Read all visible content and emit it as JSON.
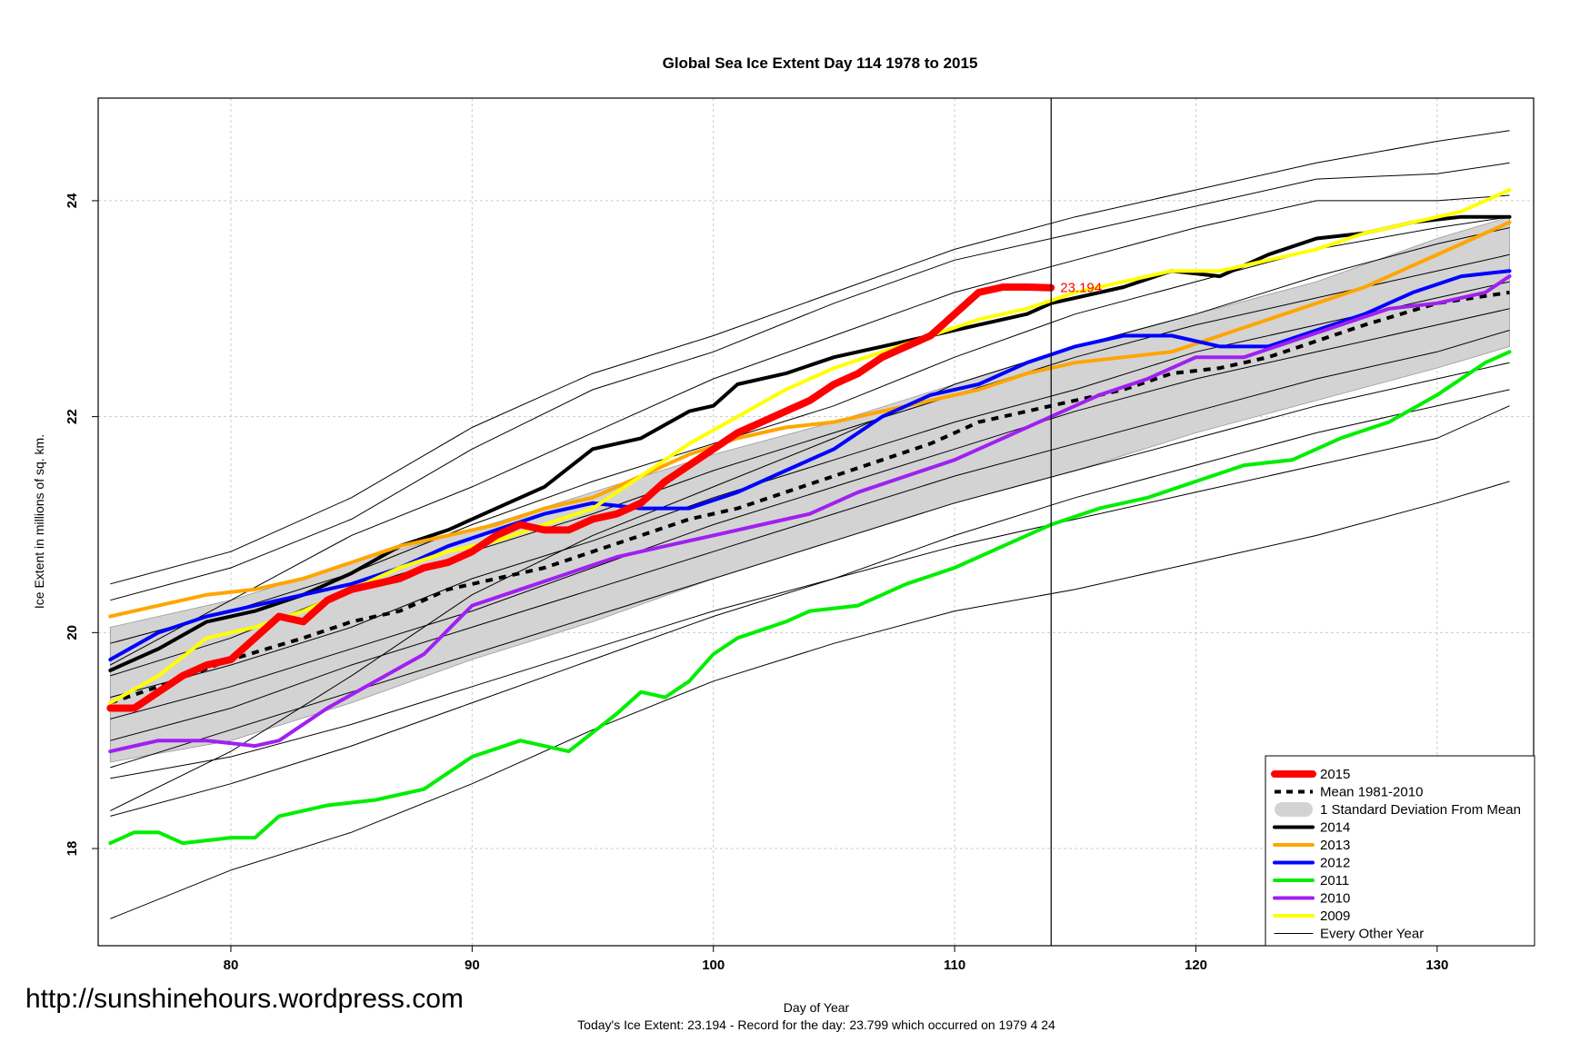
{
  "chart_data": {
    "type": "line",
    "title": "Global Sea Ice Extent Day 114 1978 to 2015",
    "xlabel": "Day of Year",
    "ylabel": "Ice Extent in millions of sq. km.",
    "xlim": [
      74.5,
      134
    ],
    "ylim": [
      17.1,
      24.95
    ],
    "x_ticks": [
      "80",
      "90",
      "100",
      "110",
      "120",
      "130"
    ],
    "y_ticks": [
      "18",
      "20",
      "22",
      "24"
    ],
    "grid": true,
    "marker_day": 114,
    "end_label": {
      "text": "23.194",
      "x": 114,
      "y": 23.194,
      "color": "#ff0000"
    },
    "footer": "Today's Ice Extent: 23.194  - Record for the day: 23.799 which occurred on 1979 4 24",
    "watermark": "http://sunshinehours.wordpress.com",
    "legend_position": "bottom-right",
    "legend": [
      {
        "label": "2015",
        "color": "#ff0000",
        "style": "thick"
      },
      {
        "label": "Mean 1981-2010",
        "color": "#000000",
        "style": "dashed"
      },
      {
        "label": "1 Standard Deviation From Mean",
        "color": "#d3d3d3",
        "style": "band"
      },
      {
        "label": "2014",
        "color": "#000000",
        "style": "line"
      },
      {
        "label": "2013",
        "color": "#ffa500",
        "style": "line"
      },
      {
        "label": "2012",
        "color": "#0000ff",
        "style": "line"
      },
      {
        "label": "2011",
        "color": "#00ee00",
        "style": "line"
      },
      {
        "label": "2010",
        "color": "#a020f0",
        "style": "line"
      },
      {
        "label": "2009",
        "color": "#ffff00",
        "style": "line"
      },
      {
        "label": "Every Other Year",
        "color": "#000000",
        "style": "thin"
      }
    ],
    "std_band": {
      "x": [
        75,
        80,
        85,
        90,
        95,
        100,
        105,
        110,
        115,
        120,
        125,
        130,
        133
      ],
      "upper": [
        20.05,
        20.3,
        20.65,
        20.95,
        21.3,
        21.65,
        21.95,
        22.3,
        22.65,
        22.95,
        23.25,
        23.65,
        23.85
      ],
      "lower": [
        18.8,
        19.0,
        19.35,
        19.75,
        20.1,
        20.5,
        20.85,
        21.2,
        21.5,
        21.85,
        22.15,
        22.45,
        22.65
      ]
    },
    "series": [
      {
        "name": "Mean 1981-2010",
        "color": "#000000",
        "style": "dashed",
        "x": [
          75,
          77,
          80,
          83,
          85,
          87,
          89,
          91,
          93,
          95,
          97,
          99,
          101,
          103,
          105,
          107,
          109,
          111,
          113,
          115,
          117,
          119,
          121,
          123,
          125,
          127,
          130,
          133
        ],
        "y": [
          19.35,
          19.5,
          19.75,
          19.95,
          20.1,
          20.2,
          20.4,
          20.5,
          20.6,
          20.75,
          20.9,
          21.05,
          21.15,
          21.3,
          21.45,
          21.6,
          21.75,
          21.95,
          22.05,
          22.15,
          22.25,
          22.4,
          22.45,
          22.55,
          22.7,
          22.85,
          23.05,
          23.15
        ]
      },
      {
        "name": "2014",
        "color": "#000000",
        "style": "line",
        "x": [
          75,
          77,
          79,
          81,
          83,
          85,
          87,
          89,
          91,
          93,
          95,
          97,
          99,
          100,
          101,
          103,
          105,
          107,
          109,
          111,
          113,
          114,
          115,
          117,
          119,
          121,
          123,
          125,
          127,
          129,
          131,
          133
        ],
        "y": [
          19.65,
          19.85,
          20.1,
          20.2,
          20.35,
          20.55,
          20.8,
          20.95,
          21.15,
          21.35,
          21.7,
          21.8,
          22.05,
          22.1,
          22.3,
          22.4,
          22.55,
          22.65,
          22.75,
          22.85,
          22.95,
          23.05,
          23.1,
          23.2,
          23.35,
          23.3,
          23.5,
          23.65,
          23.7,
          23.8,
          23.85,
          23.85
        ]
      },
      {
        "name": "2013",
        "color": "#ffa500",
        "style": "line",
        "x": [
          75,
          77,
          79,
          81,
          83,
          85,
          87,
          89,
          91,
          93,
          95,
          97,
          99,
          101,
          103,
          105,
          107,
          109,
          111,
          113,
          115,
          117,
          119,
          121,
          123,
          125,
          127,
          129,
          131,
          133
        ],
        "y": [
          20.15,
          20.25,
          20.35,
          20.4,
          20.5,
          20.65,
          20.8,
          20.9,
          21.0,
          21.15,
          21.25,
          21.45,
          21.65,
          21.8,
          21.9,
          21.95,
          22.05,
          22.15,
          22.25,
          22.4,
          22.5,
          22.55,
          22.6,
          22.75,
          22.9,
          23.05,
          23.2,
          23.4,
          23.6,
          23.8
        ]
      },
      {
        "name": "2012",
        "color": "#0000ff",
        "style": "line",
        "x": [
          75,
          77,
          79,
          81,
          83,
          85,
          87,
          89,
          91,
          93,
          95,
          97,
          99,
          101,
          103,
          105,
          107,
          109,
          111,
          113,
          115,
          117,
          119,
          121,
          123,
          125,
          127,
          129,
          131,
          133
        ],
        "y": [
          19.75,
          20.0,
          20.15,
          20.25,
          20.35,
          20.45,
          20.6,
          20.8,
          20.95,
          21.1,
          21.2,
          21.15,
          21.15,
          21.3,
          21.5,
          21.7,
          22.0,
          22.2,
          22.3,
          22.5,
          22.65,
          22.75,
          22.75,
          22.65,
          22.65,
          22.8,
          22.95,
          23.15,
          23.3,
          23.35
        ]
      },
      {
        "name": "2011",
        "color": "#00ee00",
        "style": "line",
        "x": [
          75,
          76,
          77,
          78,
          80,
          81,
          82,
          84,
          86,
          88,
          89,
          90,
          92,
          94,
          96,
          97,
          98,
          99,
          100,
          101,
          103,
          104,
          106,
          108,
          110,
          112,
          114,
          116,
          118,
          120,
          122,
          124,
          126,
          128,
          130,
          132,
          133
        ],
        "y": [
          18.05,
          18.15,
          18.15,
          18.05,
          18.1,
          18.1,
          18.3,
          18.4,
          18.45,
          18.55,
          18.7,
          18.85,
          19.0,
          18.9,
          19.25,
          19.45,
          19.4,
          19.55,
          19.8,
          19.95,
          20.1,
          20.2,
          20.25,
          20.45,
          20.6,
          20.8,
          21.0,
          21.15,
          21.25,
          21.4,
          21.55,
          21.6,
          21.8,
          21.95,
          22.2,
          22.5,
          22.6
        ]
      },
      {
        "name": "2010",
        "color": "#a020f0",
        "style": "line",
        "x": [
          75,
          77,
          79,
          81,
          82,
          84,
          86,
          88,
          90,
          92,
          94,
          96,
          98,
          100,
          102,
          104,
          106,
          108,
          110,
          112,
          114,
          116,
          118,
          120,
          122,
          124,
          126,
          128,
          130,
          132,
          133
        ],
        "y": [
          18.9,
          19.0,
          19.0,
          18.95,
          19.0,
          19.3,
          19.55,
          19.8,
          20.25,
          20.4,
          20.55,
          20.7,
          20.8,
          20.9,
          21.0,
          21.1,
          21.3,
          21.45,
          21.6,
          21.8,
          22.0,
          22.2,
          22.35,
          22.55,
          22.55,
          22.7,
          22.85,
          23.0,
          23.05,
          23.15,
          23.3
        ]
      },
      {
        "name": "2009",
        "color": "#ffff00",
        "style": "line",
        "x": [
          75,
          77,
          79,
          81,
          83,
          85,
          87,
          89,
          91,
          93,
          95,
          97,
          99,
          101,
          103,
          105,
          107,
          109,
          111,
          113,
          115,
          117,
          119,
          121,
          123,
          125,
          127,
          129,
          131,
          133
        ],
        "y": [
          19.35,
          19.6,
          19.95,
          20.05,
          20.2,
          20.4,
          20.6,
          20.75,
          20.85,
          21.0,
          21.15,
          21.45,
          21.75,
          22.0,
          22.25,
          22.45,
          22.6,
          22.75,
          22.9,
          23.0,
          23.15,
          23.25,
          23.35,
          23.35,
          23.45,
          23.55,
          23.7,
          23.8,
          23.9,
          24.1
        ]
      },
      {
        "name": "2015",
        "color": "#ff0000",
        "style": "thick",
        "x": [
          75,
          76,
          77,
          78,
          79,
          80,
          81,
          82,
          83,
          84,
          85,
          86,
          87,
          88,
          89,
          90,
          91,
          92,
          93,
          94,
          95,
          96,
          97,
          98,
          99,
          100,
          101,
          102,
          103,
          104,
          105,
          106,
          107,
          108,
          109,
          110,
          111,
          112,
          113,
          114
        ],
        "y": [
          19.3,
          19.3,
          19.45,
          19.6,
          19.7,
          19.75,
          19.95,
          20.15,
          20.1,
          20.3,
          20.4,
          20.45,
          20.5,
          20.6,
          20.65,
          20.75,
          20.9,
          21.0,
          20.95,
          20.95,
          21.05,
          21.1,
          21.2,
          21.4,
          21.55,
          21.7,
          21.85,
          21.95,
          22.05,
          22.15,
          22.3,
          22.4,
          22.55,
          22.65,
          22.75,
          22.95,
          23.15,
          23.2,
          23.2,
          23.194
        ]
      }
    ],
    "other_years": [
      {
        "x": [
          75,
          80,
          85,
          90,
          95,
          100,
          105,
          110,
          115,
          120,
          125,
          130,
          133
        ],
        "y": [
          20.45,
          20.75,
          21.25,
          21.9,
          22.4,
          22.75,
          23.15,
          23.55,
          23.85,
          24.1,
          24.35,
          24.55,
          24.65
        ]
      },
      {
        "x": [
          75,
          80,
          85,
          90,
          95,
          100,
          105,
          110,
          115,
          120,
          125,
          130,
          133
        ],
        "y": [
          20.3,
          20.6,
          21.05,
          21.7,
          22.25,
          22.6,
          23.05,
          23.45,
          23.7,
          23.95,
          24.2,
          24.25,
          24.35
        ]
      },
      {
        "x": [
          75,
          80,
          85,
          90,
          95,
          100,
          105,
          110,
          115,
          120,
          125,
          130,
          133
        ],
        "y": [
          19.7,
          20.3,
          20.9,
          21.35,
          21.85,
          22.35,
          22.75,
          23.15,
          23.45,
          23.75,
          24.0,
          24.0,
          24.05
        ]
      },
      {
        "x": [
          75,
          80,
          85,
          90,
          95,
          100,
          105,
          110,
          115,
          120,
          125,
          130,
          133
        ],
        "y": [
          19.9,
          20.2,
          20.55,
          21.0,
          21.4,
          21.75,
          22.1,
          22.55,
          22.95,
          23.25,
          23.55,
          23.75,
          23.85
        ]
      },
      {
        "x": [
          75,
          80,
          85,
          90,
          95,
          100,
          105,
          110,
          115,
          120,
          125,
          130,
          133
        ],
        "y": [
          19.6,
          19.95,
          20.4,
          20.75,
          21.1,
          21.5,
          21.85,
          22.2,
          22.55,
          22.85,
          23.1,
          23.35,
          23.5
        ]
      },
      {
        "x": [
          75,
          80,
          85,
          90,
          95,
          100,
          105,
          110,
          115,
          120,
          125,
          130,
          133
        ],
        "y": [
          19.4,
          19.7,
          20.05,
          20.5,
          20.85,
          21.25,
          21.6,
          21.95,
          22.25,
          22.6,
          22.85,
          23.1,
          23.25
        ]
      },
      {
        "x": [
          75,
          80,
          85,
          90,
          95,
          100,
          105,
          110,
          115,
          120,
          125,
          130,
          133
        ],
        "y": [
          19.2,
          19.5,
          19.85,
          20.2,
          20.6,
          21.0,
          21.35,
          21.7,
          22.05,
          22.35,
          22.6,
          22.85,
          23.0
        ]
      },
      {
        "x": [
          75,
          80,
          85,
          90,
          95,
          100,
          105,
          110,
          115,
          120,
          125,
          130,
          133
        ],
        "y": [
          19.0,
          19.3,
          19.7,
          20.05,
          20.4,
          20.75,
          21.1,
          21.45,
          21.75,
          22.05,
          22.35,
          22.6,
          22.8
        ]
      },
      {
        "x": [
          75,
          80,
          85,
          90,
          95,
          100,
          105,
          110,
          115,
          120,
          125,
          130,
          133
        ],
        "y": [
          18.75,
          19.1,
          19.45,
          19.8,
          20.15,
          20.5,
          20.85,
          21.2,
          21.5,
          21.8,
          22.1,
          22.35,
          22.5
        ]
      },
      {
        "x": [
          75,
          80,
          85,
          90,
          95,
          100,
          105,
          110,
          115,
          120,
          125,
          130,
          133
        ],
        "y": [
          18.3,
          18.6,
          18.95,
          19.35,
          19.75,
          20.15,
          20.5,
          20.9,
          21.25,
          21.55,
          21.85,
          22.1,
          22.25
        ]
      },
      {
        "x": [
          75,
          80,
          85,
          90,
          95,
          100,
          105,
          110,
          115,
          120,
          125,
          130,
          133
        ],
        "y": [
          18.65,
          18.85,
          19.15,
          19.5,
          19.85,
          20.2,
          20.5,
          20.8,
          21.05,
          21.3,
          21.55,
          21.8,
          22.1
        ]
      },
      {
        "x": [
          75,
          80,
          85,
          90,
          95,
          100,
          105,
          110,
          115,
          120,
          125,
          130,
          133
        ],
        "y": [
          17.35,
          17.8,
          18.15,
          18.6,
          19.1,
          19.55,
          19.9,
          20.2,
          20.4,
          20.65,
          20.9,
          21.2,
          21.4
        ]
      },
      {
        "x": [
          75,
          80,
          85,
          90,
          95,
          100,
          105,
          110,
          115,
          120,
          125,
          130,
          133
        ],
        "y": [
          18.35,
          18.9,
          19.6,
          20.35,
          20.9,
          21.35,
          21.8,
          22.3,
          22.65,
          22.95,
          23.3,
          23.6,
          23.75
        ]
      }
    ]
  }
}
